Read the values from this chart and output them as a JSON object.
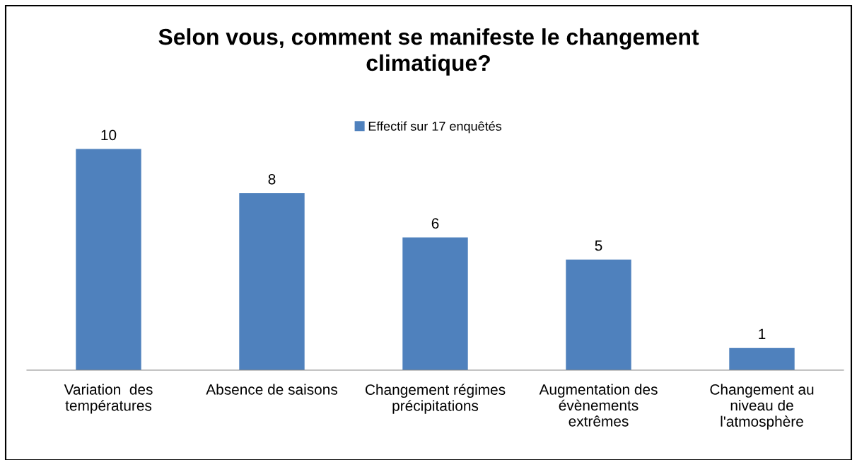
{
  "chart_data": {
    "type": "bar",
    "title": "Selon vous, comment se manifeste le changement\nclimatique?",
    "categories": [
      "Variation  des\ntempératures",
      "Absence de saisons",
      "Changement régimes\nprécipitations",
      "Augmentation des\névènements\nextrêmes",
      "Changement au\nniveau de\nl'atmosphère"
    ],
    "series": [
      {
        "name": "Effectif sur 17 enquêtés",
        "color": "#4f81bd",
        "values": [
          10,
          8,
          6,
          5,
          1
        ]
      }
    ],
    "data_labels": true,
    "legend": "top",
    "grid": false
  }
}
